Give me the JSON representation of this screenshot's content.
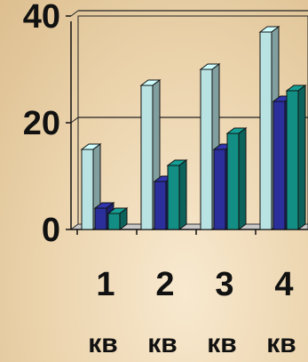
{
  "chart_data": {
    "type": "bar",
    "style": "3d-clustered-column",
    "categories": [
      "1",
      "2",
      "3",
      "4"
    ],
    "category_sublabels": [
      "кв",
      "кв",
      "кв",
      "кв"
    ],
    "series": [
      {
        "values": [
          15,
          27,
          30,
          37
        ],
        "color": "#b9e3e3"
      },
      {
        "values": [
          4,
          9,
          15,
          24
        ],
        "color": "#2b2f9b"
      },
      {
        "values": [
          3,
          12,
          18,
          26
        ],
        "color": "#138e84"
      }
    ],
    "yticks": [
      0,
      20,
      40
    ],
    "ylim": [
      0,
      40
    ],
    "grid": true,
    "title": "",
    "xlabel": "",
    "ylabel": ""
  }
}
